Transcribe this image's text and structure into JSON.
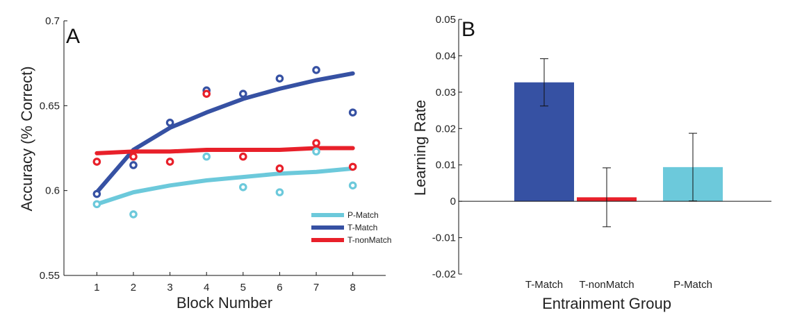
{
  "colors": {
    "p_match": "#6CC9DB",
    "t_match": "#3651A3",
    "t_nonmatch": "#E8202A",
    "axis": "#111111"
  },
  "chart_data": [
    {
      "type": "line",
      "panel_label": "A",
      "xlabel": "Block Number",
      "ylabel": "Accuracy (% Correct)",
      "x": [
        1,
        2,
        3,
        4,
        5,
        6,
        7,
        8
      ],
      "xlim": [
        0.1,
        8.9
      ],
      "ylim": [
        0.55,
        0.7
      ],
      "x_ticks": [
        "1",
        "2",
        "3",
        "4",
        "5",
        "6",
        "7",
        "8"
      ],
      "y_ticks": [
        0.55,
        0.6,
        0.65,
        0.7
      ],
      "y_tick_labels": [
        "0.55",
        "0.6",
        "0.65",
        "0.7"
      ],
      "legend_position": "bottom-right",
      "series": [
        {
          "name": "P-Match",
          "color": "#6CC9DB",
          "points": [
            0.592,
            0.586,
            null,
            0.62,
            0.602,
            0.599,
            0.623,
            0.603
          ],
          "fit": [
            0.592,
            0.599,
            0.603,
            0.606,
            0.608,
            0.61,
            0.611,
            0.613
          ]
        },
        {
          "name": "T-Match",
          "color": "#3651A3",
          "points": [
            0.598,
            0.615,
            0.64,
            0.659,
            0.657,
            0.666,
            0.671,
            0.646
          ],
          "fit": [
            0.599,
            0.624,
            0.637,
            0.646,
            0.654,
            0.66,
            0.665,
            0.669
          ]
        },
        {
          "name": "T-nonMatch",
          "color": "#E8202A",
          "points": [
            0.617,
            0.62,
            0.617,
            0.657,
            0.62,
            0.613,
            0.628,
            0.614
          ],
          "fit": [
            0.622,
            0.623,
            0.623,
            0.624,
            0.624,
            0.624,
            0.625,
            0.625
          ]
        }
      ]
    },
    {
      "type": "bar",
      "panel_label": "B",
      "xlabel": "Entrainment Group",
      "ylabel": "Learning Rate",
      "ylim": [
        -0.02,
        0.05
      ],
      "y_ticks": [
        -0.02,
        -0.01,
        0,
        0.01,
        0.02,
        0.03,
        0.04,
        0.05
      ],
      "y_tick_labels": [
        "-0.02",
        "-0.01",
        "0",
        "0.01",
        "0.02",
        "0.03",
        "0.04",
        "0.05"
      ],
      "categories": [
        "T-Match",
        "T-nonMatch",
        "P-Match"
      ],
      "values": [
        0.0327,
        0.0011,
        0.0094
      ],
      "errors": [
        0.0065,
        0.0081,
        0.0093
      ],
      "bar_colors": [
        "#3651A3",
        "#E8202A",
        "#6CC9DB"
      ]
    }
  ]
}
